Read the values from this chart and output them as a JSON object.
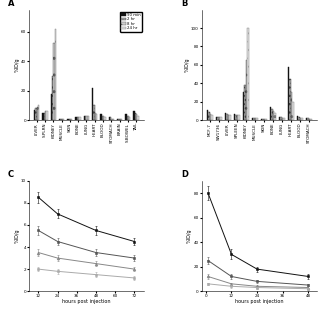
{
  "panel_A": {
    "label": "A",
    "categories": [
      "LIVER",
      "S.PLRN",
      "KIDNEY",
      "MUSCLE",
      "SKIN",
      "BONE",
      "LUNG",
      "HEART",
      "BLOOD",
      "STOMACH",
      "BRAIN",
      "S.BOWEL",
      "TAIL"
    ],
    "data": {
      "90min": [
        7,
        5,
        18,
        1,
        1,
        2,
        3,
        22,
        4,
        2,
        1,
        4,
        6
      ],
      "2hr": [
        8,
        5,
        30,
        1,
        1,
        2,
        3,
        10,
        3,
        2,
        1,
        3,
        5
      ],
      "8hr": [
        9,
        6,
        52,
        1,
        1,
        2,
        3,
        5,
        3,
        1,
        1,
        3,
        4
      ],
      "24hr": [
        10,
        6,
        62,
        1,
        1,
        2,
        3,
        4,
        2,
        1,
        1,
        2,
        3
      ]
    },
    "ylim": [
      0,
      75
    ],
    "yticks": [
      0,
      20,
      40,
      60
    ],
    "ylabel": "%ID/g"
  },
  "panel_B": {
    "label": "B",
    "categories": [
      "MCF-7",
      "SW1736",
      "LIVER",
      "SPLEEN",
      "KIDNEY",
      "MUSCLE",
      "SKIN",
      "BONE",
      "LUNG",
      "HEART",
      "BLOOD",
      "STOMACH"
    ],
    "data": {
      "90min": [
        11,
        3,
        8,
        7,
        31,
        2,
        1,
        14,
        3,
        58,
        4,
        2
      ],
      "2hr": [
        9,
        3,
        7,
        6,
        38,
        2,
        1,
        12,
        3,
        45,
        3,
        2
      ],
      "8hr": [
        7,
        3,
        6,
        5,
        65,
        2,
        1,
        10,
        2,
        30,
        2,
        1
      ],
      "24hr": [
        6,
        3,
        6,
        5,
        100,
        2,
        1,
        8,
        2,
        20,
        2,
        1
      ]
    },
    "ylim": [
      0,
      120
    ],
    "yticks": [
      0,
      20,
      40,
      60,
      80,
      100
    ],
    "ylabel": "%ID/g"
  },
  "panel_C": {
    "label": "C",
    "xlabel": "hours post injection",
    "ylabel": "%ID/g",
    "ylim": [
      0,
      10
    ],
    "xlim": [
      6,
      78
    ],
    "xticks": [
      12,
      24,
      36,
      48,
      60,
      72
    ],
    "yticks": [
      0,
      2,
      4,
      6,
      8,
      10
    ],
    "series": [
      {
        "x": [
          12,
          24,
          48,
          72
        ],
        "y": [
          8.5,
          7.0,
          5.5,
          4.5
        ],
        "err": [
          0.5,
          0.4,
          0.4,
          0.3
        ]
      },
      {
        "x": [
          12,
          24,
          48,
          72
        ],
        "y": [
          5.5,
          4.5,
          3.5,
          3.0
        ],
        "err": [
          0.4,
          0.3,
          0.3,
          0.3
        ]
      },
      {
        "x": [
          12,
          24,
          48,
          72
        ],
        "y": [
          3.5,
          3.0,
          2.5,
          2.0
        ],
        "err": [
          0.3,
          0.3,
          0.2,
          0.2
        ]
      },
      {
        "x": [
          12,
          24,
          48,
          72
        ],
        "y": [
          2.0,
          1.8,
          1.5,
          1.2
        ],
        "err": [
          0.2,
          0.2,
          0.2,
          0.2
        ]
      }
    ]
  },
  "panel_D": {
    "label": "D",
    "xlabel": "hours post injection",
    "ylabel": "%ID/g",
    "ylim": [
      0,
      90
    ],
    "xlim": [
      -2,
      52
    ],
    "xticks": [
      0,
      12,
      24,
      36,
      48
    ],
    "yticks": [
      0,
      20,
      40,
      60,
      80
    ],
    "series": [
      {
        "x": [
          1,
          12,
          24,
          48
        ],
        "y": [
          80,
          30,
          18,
          12
        ],
        "err": [
          6,
          4,
          2,
          2
        ]
      },
      {
        "x": [
          1,
          12,
          24,
          48
        ],
        "y": [
          25,
          12,
          8,
          5
        ],
        "err": [
          3,
          2,
          1,
          1
        ]
      },
      {
        "x": [
          1,
          12,
          24,
          48
        ],
        "y": [
          12,
          6,
          4,
          3
        ],
        "err": [
          2,
          1,
          1,
          1
        ]
      },
      {
        "x": [
          1,
          12,
          24,
          48
        ],
        "y": [
          6,
          4,
          3,
          2
        ],
        "err": [
          1,
          1,
          1,
          1
        ]
      }
    ]
  },
  "time_labels": [
    "90 min",
    "2 hr",
    "8 hr",
    "24 hr"
  ]
}
